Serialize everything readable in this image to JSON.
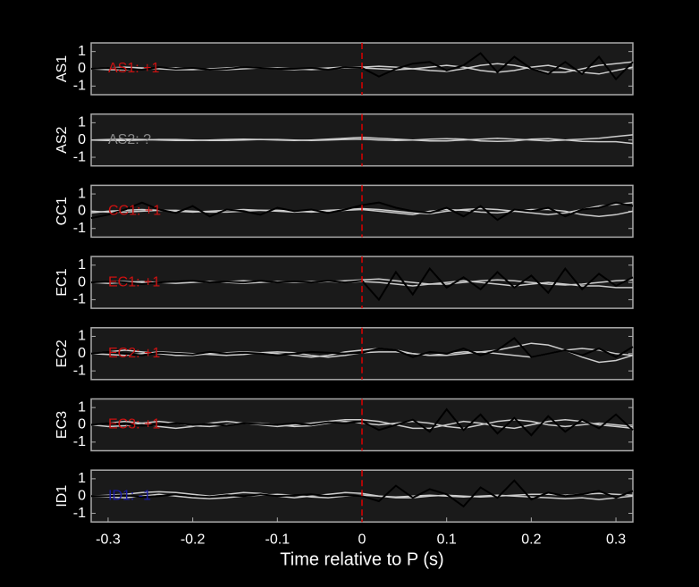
{
  "chart_data": [
    {
      "type": "line",
      "ylabel": "AS1",
      "annotation": "AS1: +1",
      "annotation_color": "#cc1111",
      "xlim": [
        -0.32,
        0.32
      ],
      "ylim": [
        -1.5,
        1.5
      ],
      "yticks": [
        -1,
        0,
        1
      ],
      "vline": 0,
      "x": [
        -0.32,
        -0.3,
        -0.28,
        -0.26,
        -0.24,
        -0.22,
        -0.2,
        -0.18,
        -0.16,
        -0.14,
        -0.12,
        -0.1,
        -0.08,
        -0.06,
        -0.04,
        -0.02,
        0,
        0.02,
        0.04,
        0.06,
        0.08,
        0.1,
        0.12,
        0.14,
        0.16,
        0.18,
        0.2,
        0.22,
        0.24,
        0.26,
        0.28,
        0.3,
        0.32
      ],
      "series": [
        {
          "color": "#cccccc",
          "values": [
            0,
            0.05,
            0.1,
            0.05,
            0,
            -0.05,
            -0.05,
            0,
            0.05,
            0.1,
            0.05,
            0,
            -0.05,
            0,
            0.05,
            0.1,
            0.1,
            0.15,
            0.1,
            0,
            -0.1,
            -0.15,
            0,
            0.2,
            0.3,
            0.2,
            0,
            -0.2,
            -0.2,
            0,
            0.2,
            0.3,
            0.4
          ]
        },
        {
          "color": "#cccccc",
          "values": [
            0,
            -0.05,
            -0.05,
            0,
            0.05,
            0.05,
            0,
            -0.05,
            -0.05,
            0,
            0.05,
            0.05,
            0,
            -0.05,
            0,
            0.05,
            0.05,
            0,
            -0.05,
            0,
            0.1,
            0.2,
            0.1,
            -0.1,
            -0.2,
            -0.1,
            0.1,
            0.2,
            0,
            -0.2,
            -0.3,
            -0.1,
            0.1
          ]
        },
        {
          "color": "#000000",
          "values": [
            0,
            0.05,
            0,
            -0.05,
            0.1,
            0,
            0.05,
            -0.05,
            0,
            0.1,
            0.05,
            0,
            0,
            0.05,
            -0.05,
            0.1,
            0.05,
            -0.45,
            0,
            0.3,
            0.4,
            -0.1,
            0.2,
            0.9,
            -0.2,
            0.7,
            0,
            -0.3,
            0.4,
            -0.3,
            0.7,
            -0.6,
            0.4
          ]
        }
      ]
    },
    {
      "type": "line",
      "ylabel": "AS2",
      "annotation": "AS2: ?",
      "annotation_color": "#888888",
      "xlim": [
        -0.32,
        0.32
      ],
      "ylim": [
        -1.5,
        1.5
      ],
      "yticks": [
        -1,
        0,
        1
      ],
      "vline": 0,
      "x": [
        -0.32,
        -0.3,
        -0.28,
        -0.26,
        -0.24,
        -0.22,
        -0.2,
        -0.18,
        -0.16,
        -0.14,
        -0.12,
        -0.1,
        -0.08,
        -0.06,
        -0.04,
        -0.02,
        0,
        0.02,
        0.04,
        0.06,
        0.08,
        0.1,
        0.12,
        0.14,
        0.16,
        0.18,
        0.2,
        0.22,
        0.24,
        0.26,
        0.28,
        0.3,
        0.32
      ],
      "series": [
        {
          "color": "#cccccc",
          "values": [
            0,
            0.03,
            0.05,
            0.03,
            0,
            -0.03,
            -0.03,
            0,
            0.03,
            0.05,
            0.03,
            0,
            -0.03,
            0,
            0.05,
            0.1,
            0.15,
            0.1,
            0.05,
            0,
            -0.05,
            -0.05,
            0,
            0.05,
            0.1,
            0.05,
            0,
            -0.05,
            0,
            0.05,
            0.1,
            0.2,
            0.3
          ]
        },
        {
          "color": "#cccccc",
          "values": [
            0,
            -0.03,
            -0.03,
            0,
            0.03,
            0.03,
            0,
            -0.03,
            -0.03,
            0,
            0.03,
            0.03,
            0,
            -0.03,
            0,
            0.03,
            0.05,
            0,
            -0.03,
            0,
            0.05,
            0.08,
            0.05,
            -0.05,
            -0.08,
            -0.05,
            0.05,
            0.08,
            0,
            -0.08,
            -0.1,
            -0.1,
            -0.2
          ]
        }
      ]
    },
    {
      "type": "line",
      "ylabel": "CC1",
      "annotation": "CC1: +1",
      "annotation_color": "#cc1111",
      "xlim": [
        -0.32,
        0.32
      ],
      "ylim": [
        -1.5,
        1.5
      ],
      "yticks": [
        -1,
        0,
        1
      ],
      "vline": 0,
      "x": [
        -0.32,
        -0.3,
        -0.28,
        -0.26,
        -0.24,
        -0.22,
        -0.2,
        -0.18,
        -0.16,
        -0.14,
        -0.12,
        -0.1,
        -0.08,
        -0.06,
        -0.04,
        -0.02,
        0,
        0.02,
        0.04,
        0.06,
        0.08,
        0.1,
        0.12,
        0.14,
        0.16,
        0.18,
        0.2,
        0.22,
        0.24,
        0.26,
        0.28,
        0.3,
        0.32
      ],
      "series": [
        {
          "color": "#cccccc",
          "values": [
            -0.1,
            0,
            0.05,
            0.1,
            0.05,
            0,
            -0.05,
            0,
            0.05,
            0.1,
            0.05,
            0,
            -0.05,
            0,
            0.05,
            0.1,
            0.15,
            0.1,
            0,
            -0.1,
            -0.15,
            0,
            0.1,
            0.15,
            0.1,
            0,
            -0.1,
            -0.2,
            -0.1,
            0.1,
            0.3,
            0.4,
            0.5
          ]
        },
        {
          "color": "#cccccc",
          "values": [
            0,
            -0.05,
            -0.05,
            0,
            0.05,
            0.05,
            0,
            -0.05,
            -0.05,
            0,
            0.05,
            0.05,
            0,
            -0.05,
            0,
            0.05,
            0.1,
            0,
            -0.1,
            -0.2,
            0,
            0.1,
            0.05,
            -0.05,
            -0.1,
            0,
            0.1,
            0.1,
            0,
            -0.2,
            -0.3,
            -0.2,
            0
          ]
        },
        {
          "color": "#000000",
          "values": [
            -0.4,
            -0.2,
            0.1,
            0.5,
            0.1,
            -0.1,
            0.3,
            -0.3,
            0.1,
            0,
            -0.2,
            0.2,
            0,
            0.1,
            -0.1,
            0.1,
            0.35,
            0.5,
            0.2,
            0,
            -0.1,
            0.2,
            -0.3,
            0.3,
            -0.5,
            0.1,
            0,
            0.2,
            -0.3,
            0.1,
            0.2,
            0.5,
            0.3
          ]
        }
      ]
    },
    {
      "type": "line",
      "ylabel": "EC1",
      "annotation": "EC1: +1",
      "annotation_color": "#cc1111",
      "xlim": [
        -0.32,
        0.32
      ],
      "ylim": [
        -1.5,
        1.5
      ],
      "yticks": [
        -1,
        0,
        1
      ],
      "vline": 0,
      "x": [
        -0.32,
        -0.3,
        -0.28,
        -0.26,
        -0.24,
        -0.22,
        -0.2,
        -0.18,
        -0.16,
        -0.14,
        -0.12,
        -0.1,
        -0.08,
        -0.06,
        -0.04,
        -0.02,
        0,
        0.02,
        0.04,
        0.06,
        0.08,
        0.1,
        0.12,
        0.14,
        0.16,
        0.18,
        0.2,
        0.22,
        0.24,
        0.26,
        0.28,
        0.3,
        0.32
      ],
      "series": [
        {
          "color": "#cccccc",
          "values": [
            0,
            0.05,
            0.05,
            0,
            0,
            0.05,
            0.05,
            0,
            0.05,
            0.1,
            0.05,
            0,
            0,
            0.05,
            0.05,
            0.1,
            0.15,
            0.2,
            0.1,
            0,
            -0.1,
            -0.1,
            0,
            0.1,
            0.15,
            0.1,
            0,
            -0.1,
            -0.15,
            -0.1,
            0,
            0.1,
            0.15
          ]
        },
        {
          "color": "#cccccc",
          "values": [
            0,
            -0.05,
            0,
            0.05,
            0,
            -0.05,
            0,
            0.05,
            0,
            -0.05,
            0,
            0.05,
            0,
            0,
            0.05,
            0,
            0.05,
            0,
            -0.1,
            -0.2,
            -0.1,
            0,
            0.1,
            0,
            -0.1,
            -0.2,
            -0.1,
            0,
            -0.1,
            -0.2,
            -0.2,
            -0.3,
            -0.3
          ]
        },
        {
          "color": "#000000",
          "values": [
            0,
            0.05,
            0,
            -0.1,
            0,
            0.05,
            0.1,
            0,
            0.05,
            0,
            0.1,
            0,
            0.05,
            0,
            0.1,
            0,
            0.1,
            -1,
            0.6,
            -0.7,
            0.8,
            -0.3,
            0.3,
            -0.4,
            0.6,
            -0.3,
            0.4,
            -0.6,
            0.8,
            -0.4,
            0.5,
            -0.2,
            0.3
          ]
        }
      ]
    },
    {
      "type": "line",
      "ylabel": "EC2",
      "annotation": "EC2: +1",
      "annotation_color": "#cc1111",
      "xlim": [
        -0.32,
        0.32
      ],
      "ylim": [
        -1.5,
        1.5
      ],
      "yticks": [
        -1,
        0,
        1
      ],
      "vline": 0,
      "x": [
        -0.32,
        -0.3,
        -0.28,
        -0.26,
        -0.24,
        -0.22,
        -0.2,
        -0.18,
        -0.16,
        -0.14,
        -0.12,
        -0.1,
        -0.08,
        -0.06,
        -0.04,
        -0.02,
        0,
        0.02,
        0.04,
        0.06,
        0.08,
        0.1,
        0.12,
        0.14,
        0.16,
        0.18,
        0.2,
        0.22,
        0.24,
        0.26,
        0.28,
        0.3,
        0.32
      ],
      "series": [
        {
          "color": "#cccccc",
          "values": [
            0,
            0.1,
            0.2,
            0.1,
            0,
            -0.1,
            -0.1,
            0,
            0.05,
            0.1,
            0.05,
            0,
            -0.1,
            -0.2,
            -0.1,
            0.1,
            0.2,
            0.3,
            0.2,
            0,
            -0.1,
            -0.1,
            0,
            0.1,
            0.2,
            0.4,
            0.6,
            0.5,
            0.2,
            -0.2,
            -0.5,
            -0.4,
            -0.1
          ]
        },
        {
          "color": "#cccccc",
          "values": [
            0,
            -0.05,
            -0.1,
            0,
            0.1,
            0.05,
            0,
            -0.05,
            -0.1,
            -0.05,
            0.05,
            0.1,
            0.05,
            -0.1,
            -0.2,
            -0.1,
            0.05,
            0.1,
            0.1,
            0,
            -0.1,
            0,
            0.1,
            0.1,
            0,
            -0.1,
            -0.2,
            0,
            0.2,
            0.3,
            0.2,
            0,
            -0.1
          ]
        },
        {
          "color": "#000000",
          "values": [
            0,
            0.1,
            0,
            -0.1,
            0.05,
            0,
            -0.05,
            0.1,
            0,
            0.05,
            0,
            -0.1,
            0,
            0.1,
            0.05,
            0,
            0.05,
            0.3,
            0.2,
            -0.2,
            0.1,
            0,
            0.3,
            -0.1,
            0.2,
            0.9,
            -0.2,
            0,
            0.2,
            -0.1,
            0.3,
            -0.2,
            0.4
          ]
        }
      ]
    },
    {
      "type": "line",
      "ylabel": "EC3",
      "annotation": "EC3: +1",
      "annotation_color": "#cc1111",
      "xlim": [
        -0.32,
        0.32
      ],
      "ylim": [
        -1.5,
        1.5
      ],
      "yticks": [
        -1,
        0,
        1
      ],
      "vline": 0,
      "x": [
        -0.32,
        -0.3,
        -0.28,
        -0.26,
        -0.24,
        -0.22,
        -0.2,
        -0.18,
        -0.16,
        -0.14,
        -0.12,
        -0.1,
        -0.08,
        -0.06,
        -0.04,
        -0.02,
        0,
        0.02,
        0.04,
        0.06,
        0.08,
        0.1,
        0.12,
        0.14,
        0.16,
        0.18,
        0.2,
        0.22,
        0.24,
        0.26,
        0.28,
        0.3,
        0.32
      ],
      "series": [
        {
          "color": "#cccccc",
          "values": [
            0,
            0.1,
            0.2,
            0.1,
            -0.1,
            -0.2,
            -0.1,
            0.1,
            0.2,
            0.1,
            0,
            -0.1,
            0,
            0.1,
            0.2,
            0.3,
            0.3,
            0.2,
            0,
            -0.2,
            -0.2,
            0,
            0.2,
            0.1,
            -0.1,
            -0.2,
            0,
            0.2,
            0.3,
            0.2,
            0,
            -0.1,
            -0.2
          ]
        },
        {
          "color": "#cccccc",
          "values": [
            0,
            -0.1,
            -0.05,
            0.1,
            0.2,
            0.1,
            -0.05,
            -0.1,
            0,
            0.1,
            0.1,
            0,
            -0.1,
            -0.05,
            0.1,
            0.2,
            0.1,
            0,
            0.1,
            0.2,
            0.1,
            -0.1,
            -0.2,
            0,
            0.2,
            0.3,
            0.2,
            0,
            -0.1,
            0,
            0.1,
            0,
            -0.1
          ]
        },
        {
          "color": "#000000",
          "values": [
            0,
            0.1,
            0.05,
            -0.05,
            0,
            0.1,
            0,
            0.05,
            -0.05,
            0.1,
            0.05,
            0,
            0.1,
            0,
            0.15,
            0.1,
            0.2,
            -0.3,
            0,
            0.3,
            -0.4,
            0.9,
            -0.3,
            0.6,
            -0.5,
            0.4,
            -0.6,
            0.5,
            -0.4,
            0.3,
            -0.2,
            0.6,
            -0.3
          ]
        }
      ]
    },
    {
      "type": "line",
      "ylabel": "ID1",
      "annotation": "ID1: -1",
      "annotation_color": "#1a1aaa",
      "xlim": [
        -0.32,
        0.32
      ],
      "ylim": [
        -1.5,
        1.5
      ],
      "yticks": [
        -1,
        0,
        1
      ],
      "vline": 0,
      "xticks": [
        -0.3,
        -0.2,
        -0.1,
        0,
        0.1,
        0.2,
        0.3
      ],
      "xlabel": "Time relative to P (s)",
      "x": [
        -0.32,
        -0.3,
        -0.28,
        -0.26,
        -0.24,
        -0.22,
        -0.2,
        -0.18,
        -0.16,
        -0.14,
        -0.12,
        -0.1,
        -0.08,
        -0.06,
        -0.04,
        -0.02,
        0,
        0.02,
        0.04,
        0.06,
        0.08,
        0.1,
        0.12,
        0.14,
        0.16,
        0.18,
        0.2,
        0.22,
        0.24,
        0.26,
        0.28,
        0.3,
        0.32
      ],
      "series": [
        {
          "color": "#cccccc",
          "values": [
            0,
            0.05,
            0.1,
            0.2,
            0.25,
            0.2,
            0.1,
            0,
            0.1,
            0.2,
            0.15,
            0,
            -0.1,
            0,
            0.1,
            0.2,
            0.15,
            0,
            -0.1,
            -0.1,
            0,
            0.05,
            0,
            -0.05,
            0,
            0.05,
            0.1,
            0.1,
            0.05,
            0.1,
            0.15,
            0.1,
            0.05
          ]
        },
        {
          "color": "#cccccc",
          "values": [
            0,
            -0.05,
            -0.1,
            0,
            0.1,
            0,
            -0.1,
            -0.15,
            -0.1,
            0,
            0.05,
            0.1,
            0.05,
            -0.05,
            -0.1,
            0,
            0.05,
            0,
            -0.05,
            0,
            0.05,
            0,
            -0.05,
            0,
            0.05,
            0,
            -0.05,
            -0.1,
            -0.15,
            -0.1,
            -0.2,
            -0.1,
            0
          ]
        },
        {
          "color": "#000000",
          "values": [
            0,
            0,
            0.05,
            -0.05,
            0,
            0.1,
            0,
            -0.05,
            0.05,
            0,
            0.1,
            0,
            0.05,
            0.1,
            0,
            0.05,
            0,
            -0.3,
            0.6,
            -0.1,
            0.4,
            0.1,
            -0.6,
            0.5,
            -0.1,
            0.9,
            -0.2,
            0.2,
            0,
            0.1,
            0.3,
            -0.1,
            0.3
          ]
        }
      ]
    }
  ]
}
